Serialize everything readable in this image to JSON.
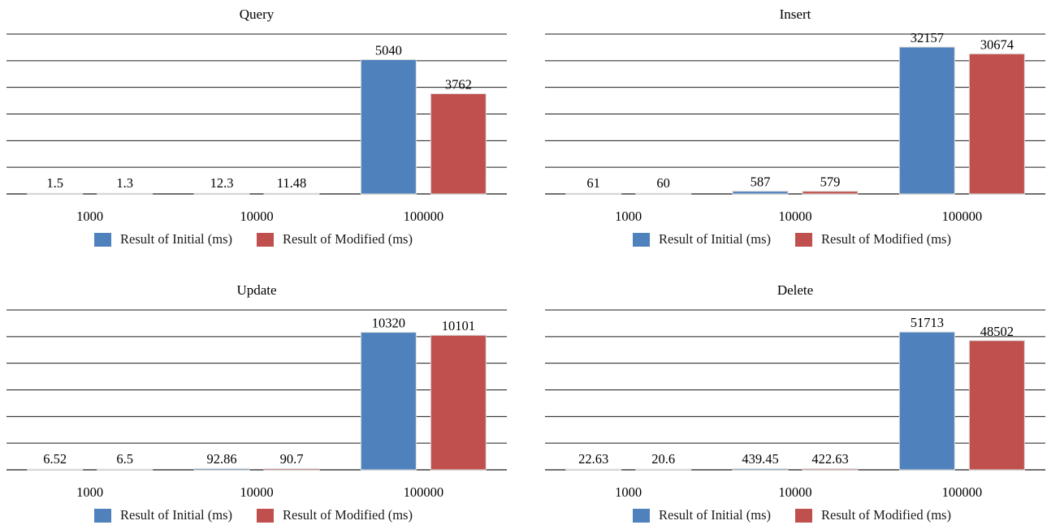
{
  "colors": {
    "initial": "#4f81bd",
    "modified": "#c0504d",
    "grid": "#1a1a1a"
  },
  "legend": {
    "initial": "Result of Initial (ms)",
    "modified": "Result of Modified (ms)"
  },
  "chart_data": [
    {
      "type": "bar",
      "title": "Query",
      "categories": [
        "1000",
        "10000",
        "100000"
      ],
      "series": [
        {
          "name": "Result of Initial (ms)",
          "values": [
            1.5,
            12.3,
            5040
          ],
          "labels": [
            "1.5",
            "12.3",
            "5040"
          ]
        },
        {
          "name": "Result of Modified (ms)",
          "values": [
            1.3,
            11.48,
            3762
          ],
          "labels": [
            "1.3",
            "11.48",
            "3762"
          ]
        }
      ],
      "ylim": [
        0,
        6000
      ],
      "grid": true,
      "legend_position": "bottom"
    },
    {
      "type": "bar",
      "title": "Insert",
      "categories": [
        "1000",
        "10000",
        "100000"
      ],
      "series": [
        {
          "name": "Result of Initial (ms)",
          "values": [
            61,
            587,
            32157
          ],
          "labels": [
            "61",
            "587",
            "32157"
          ]
        },
        {
          "name": "Result of Modified (ms)",
          "values": [
            60,
            579,
            30674
          ],
          "labels": [
            "60",
            "579",
            "30674"
          ]
        }
      ],
      "ylim": [
        0,
        35000
      ],
      "grid": true,
      "legend_position": "bottom"
    },
    {
      "type": "bar",
      "title": "Update",
      "categories": [
        "1000",
        "10000",
        "100000"
      ],
      "series": [
        {
          "name": "Result of Initial (ms)",
          "values": [
            6.52,
            92.86,
            10320
          ],
          "labels": [
            "6.52",
            "92.86",
            "10320"
          ]
        },
        {
          "name": "Result of Modified (ms)",
          "values": [
            6.5,
            90.7,
            10101
          ],
          "labels": [
            "6.5",
            "90.7",
            "10101"
          ]
        }
      ],
      "ylim": [
        0,
        12000
      ],
      "grid": true,
      "legend_position": "bottom"
    },
    {
      "type": "bar",
      "title": "Delete",
      "categories": [
        "1000",
        "10000",
        "100000"
      ],
      "series": [
        {
          "name": "Result of Initial (ms)",
          "values": [
            22.63,
            439.45,
            51713
          ],
          "labels": [
            "22.63",
            "439.45",
            "51713"
          ]
        },
        {
          "name": "Result of Modified (ms)",
          "values": [
            20.6,
            422.63,
            48502
          ],
          "labels": [
            "20.6",
            "422.63",
            "48502"
          ]
        }
      ],
      "ylim": [
        0,
        60000
      ],
      "grid": true,
      "legend_position": "bottom"
    }
  ]
}
